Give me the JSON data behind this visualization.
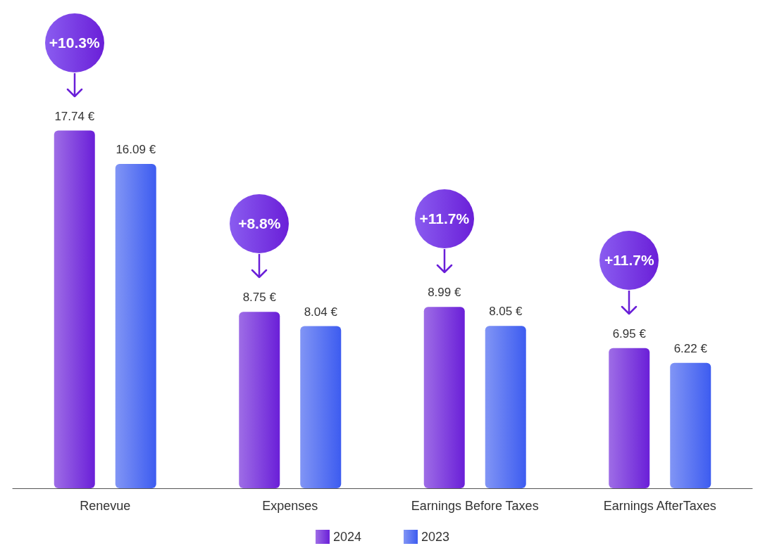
{
  "chart_data": {
    "type": "bar",
    "categories": [
      "Renevue",
      "Expenses",
      "Earnings Before Taxes",
      "Earnings AfterTaxes"
    ],
    "series": [
      {
        "name": "2024",
        "color": "#6a1fd8",
        "values": [
          17.74,
          8.75,
          8.99,
          6.95
        ],
        "value_labels": [
          "17.74 €",
          "8.75 €",
          "8.99 €",
          "6.95 €"
        ]
      },
      {
        "name": "2023",
        "color": "#3d5cf0",
        "values": [
          16.09,
          8.04,
          8.05,
          6.22
        ],
        "value_labels": [
          "16.09 €",
          "8.04 €",
          "8.05 €",
          "6.22 €"
        ]
      }
    ],
    "legend": "bottom",
    "grid": false,
    "annotations": [
      "+10.3%",
      "+8.8%",
      "+11.7%",
      "+11.7%"
    ]
  }
}
